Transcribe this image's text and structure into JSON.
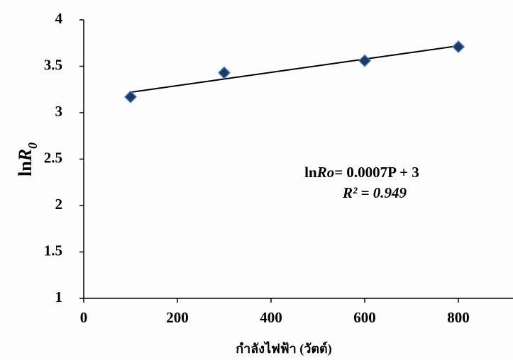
{
  "chart_data": {
    "type": "scatter",
    "x_label": "กำลังไฟฟ้า (วัตต์)",
    "y_label": {
      "prefix": "ln",
      "var": "R",
      "sub": "0"
    },
    "x": [
      100,
      300,
      600,
      800
    ],
    "values": [
      3.17,
      3.43,
      3.56,
      3.71
    ],
    "color": "#1f3864",
    "edge_color": "#4a7ebb",
    "trendline": {
      "x": [
        100,
        800
      ],
      "values": [
        3.22,
        3.72
      ],
      "color": "#000000"
    },
    "annotation": {
      "prefix": "ln",
      "var": "Ro",
      "rest": "= 0.0007P + 3",
      "r2": "R² = 0.949"
    },
    "xlim": [
      0,
      900
    ],
    "xticks": [
      0,
      200,
      400,
      600,
      800
    ],
    "ylim": [
      1,
      4
    ],
    "yticks": [
      1,
      1.5,
      2,
      2.5,
      3,
      3.5,
      4
    ]
  }
}
